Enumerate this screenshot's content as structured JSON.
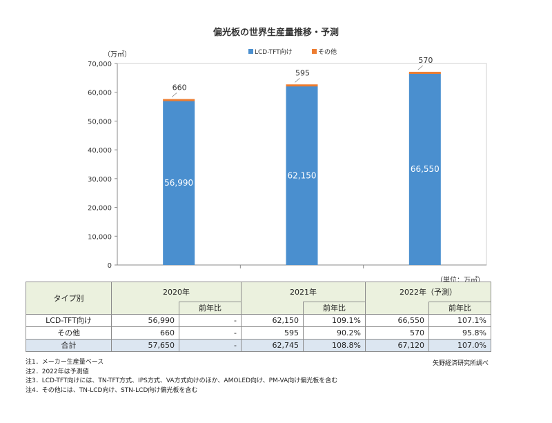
{
  "chart_data": {
    "type": "bar",
    "title": "偏光板の世界生産量推移・予測",
    "y_unit_label": "（万㎡）",
    "categories": [
      "2020年",
      "2021年",
      "2022年（予測）"
    ],
    "series": [
      {
        "name": "LCD-TFT向け",
        "values": [
          56990,
          62150,
          66550
        ],
        "color": "#4a8fcf"
      },
      {
        "name": "その他",
        "values": [
          660,
          595,
          570
        ],
        "color": "#ed7d31"
      }
    ],
    "bar_labels": [
      "56,990",
      "62,150",
      "66,550"
    ],
    "top_labels": [
      "660",
      "595",
      "570"
    ],
    "ylim": [
      0,
      70000
    ],
    "yticks": [
      0,
      10000,
      20000,
      30000,
      40000,
      50000,
      60000,
      70000
    ],
    "ytick_labels": [
      "0",
      "10,000",
      "20,000",
      "30,000",
      "40,000",
      "50,000",
      "60,000",
      "70,000"
    ],
    "legend_position": "top",
    "grid": false
  },
  "table": {
    "unit_label": "（単位：万㎡）",
    "type_header": "タイプ別",
    "yoy_label": "前年比",
    "rows": [
      {
        "label": "LCD-TFT向け",
        "y2020": "56,990",
        "y2020_yoy": "-",
        "y2021": "62,150",
        "y2021_yoy": "109.1%",
        "y2022": "66,550",
        "y2022_yoy": "107.1%"
      },
      {
        "label": "その他",
        "y2020": "660",
        "y2020_yoy": "-",
        "y2021": "595",
        "y2021_yoy": "90.2%",
        "y2022": "570",
        "y2022_yoy": "95.8%"
      },
      {
        "label": "合計",
        "y2020": "57,650",
        "y2020_yoy": "-",
        "y2021": "62,745",
        "y2021_yoy": "108.8%",
        "y2022": "67,120",
        "y2022_yoy": "107.0%"
      }
    ]
  },
  "notes": [
    "注1．メーカー生産量ベース",
    "注2．2022年は予測値",
    "注3．LCD-TFT向けには、TN-TFT方式、IPS方式、VA方式向けのほか、AMOLED向け、PM-VA向け偏光板を含む",
    "注4．その他には、TN-LCD向け、STN-LCD向け偏光板を含む"
  ],
  "source": "矢野経済研究所調べ"
}
